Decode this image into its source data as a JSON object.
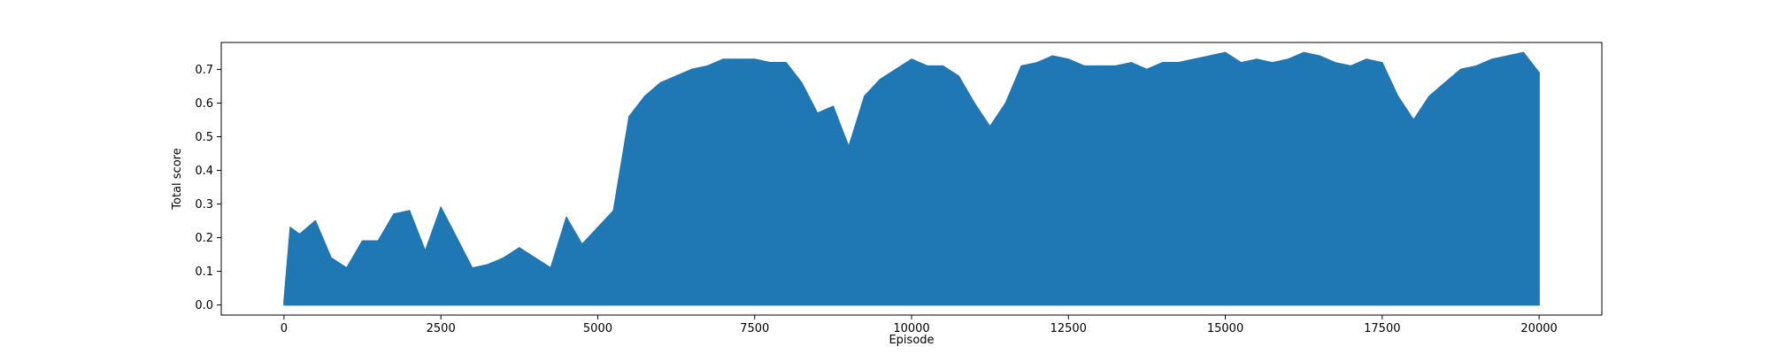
{
  "chart_data": {
    "type": "line",
    "title": "",
    "xlabel": "Episode",
    "ylabel": "Total score",
    "xlim": [
      -1000,
      21000
    ],
    "ylim": [
      -0.03,
      0.78
    ],
    "x_ticks": [
      0,
      2500,
      5000,
      7500,
      10000,
      12500,
      15000,
      17500,
      20000
    ],
    "x_tick_labels": [
      "0",
      "2500",
      "5000",
      "7500",
      "10000",
      "12500",
      "15000",
      "17500",
      "20000"
    ],
    "y_ticks": [
      0.0,
      0.1,
      0.2,
      0.3,
      0.4,
      0.5,
      0.6,
      0.7
    ],
    "y_tick_labels": [
      "0.0",
      "0.1",
      "0.2",
      "0.3",
      "0.4",
      "0.5",
      "0.6",
      "0.7"
    ],
    "grid": false,
    "legend": "none",
    "series": [
      {
        "color": "#1f77b4",
        "x": [
          0,
          100,
          250,
          500,
          750,
          1000,
          1250,
          1500,
          1750,
          2000,
          2250,
          2500,
          2750,
          3000,
          3250,
          3500,
          3750,
          4000,
          4250,
          4500,
          4750,
          5000,
          5250,
          5500,
          5750,
          6000,
          6250,
          6500,
          6750,
          7000,
          7250,
          7500,
          7750,
          8000,
          8250,
          8500,
          8750,
          9000,
          9250,
          9500,
          9750,
          10000,
          10250,
          10500,
          10750,
          11000,
          11250,
          11500,
          11750,
          12000,
          12250,
          12500,
          12750,
          13000,
          13250,
          13500,
          13750,
          14000,
          14250,
          14500,
          14750,
          15000,
          15250,
          15500,
          15750,
          16000,
          16250,
          16500,
          16750,
          17000,
          17250,
          17500,
          17750,
          18000,
          18250,
          18500,
          18750,
          19000,
          19250,
          19500,
          19750,
          20000
        ],
        "y_max": [
          0.01,
          0.23,
          0.21,
          0.25,
          0.14,
          0.11,
          0.19,
          0.19,
          0.27,
          0.28,
          0.16,
          0.29,
          0.2,
          0.11,
          0.12,
          0.14,
          0.17,
          0.14,
          0.11,
          0.26,
          0.18,
          0.23,
          0.28,
          0.56,
          0.62,
          0.66,
          0.68,
          0.7,
          0.71,
          0.73,
          0.73,
          0.73,
          0.72,
          0.72,
          0.66,
          0.57,
          0.59,
          0.47,
          0.62,
          0.67,
          0.7,
          0.73,
          0.71,
          0.71,
          0.68,
          0.6,
          0.53,
          0.6,
          0.71,
          0.72,
          0.74,
          0.73,
          0.71,
          0.71,
          0.71,
          0.72,
          0.7,
          0.72,
          0.72,
          0.73,
          0.74,
          0.75,
          0.72,
          0.73,
          0.72,
          0.73,
          0.75,
          0.74,
          0.72,
          0.71,
          0.73,
          0.72,
          0.62,
          0.55,
          0.62,
          0.66,
          0.7,
          0.71,
          0.73,
          0.74,
          0.75,
          0.69
        ],
        "y_min": [
          0.0,
          0.0,
          0.0,
          0.0,
          0.0,
          0.0,
          0.0,
          0.0,
          0.0,
          0.0,
          0.0,
          0.0,
          0.0,
          0.0,
          0.0,
          0.0,
          0.0,
          0.0,
          0.0,
          0.0,
          0.0,
          0.0,
          0.0,
          0.0,
          0.0,
          0.0,
          0.0,
          0.0,
          0.0,
          0.0,
          0.0,
          0.0,
          0.0,
          0.0,
          0.0,
          0.0,
          0.0,
          0.0,
          0.0,
          0.0,
          0.0,
          0.0,
          0.0,
          0.0,
          0.0,
          0.0,
          0.0,
          0.0,
          0.0,
          0.0,
          0.0,
          0.0,
          0.0,
          0.0,
          0.0,
          0.0,
          0.0,
          0.0,
          0.0,
          0.0,
          0.0,
          0.0,
          0.0,
          0.0,
          0.0,
          0.0,
          0.0,
          0.0,
          0.0,
          0.0,
          0.0,
          0.0,
          0.0,
          0.0,
          0.0,
          0.0,
          0.0,
          0.0,
          0.0,
          0.0,
          0.0,
          0.0
        ]
      }
    ]
  }
}
